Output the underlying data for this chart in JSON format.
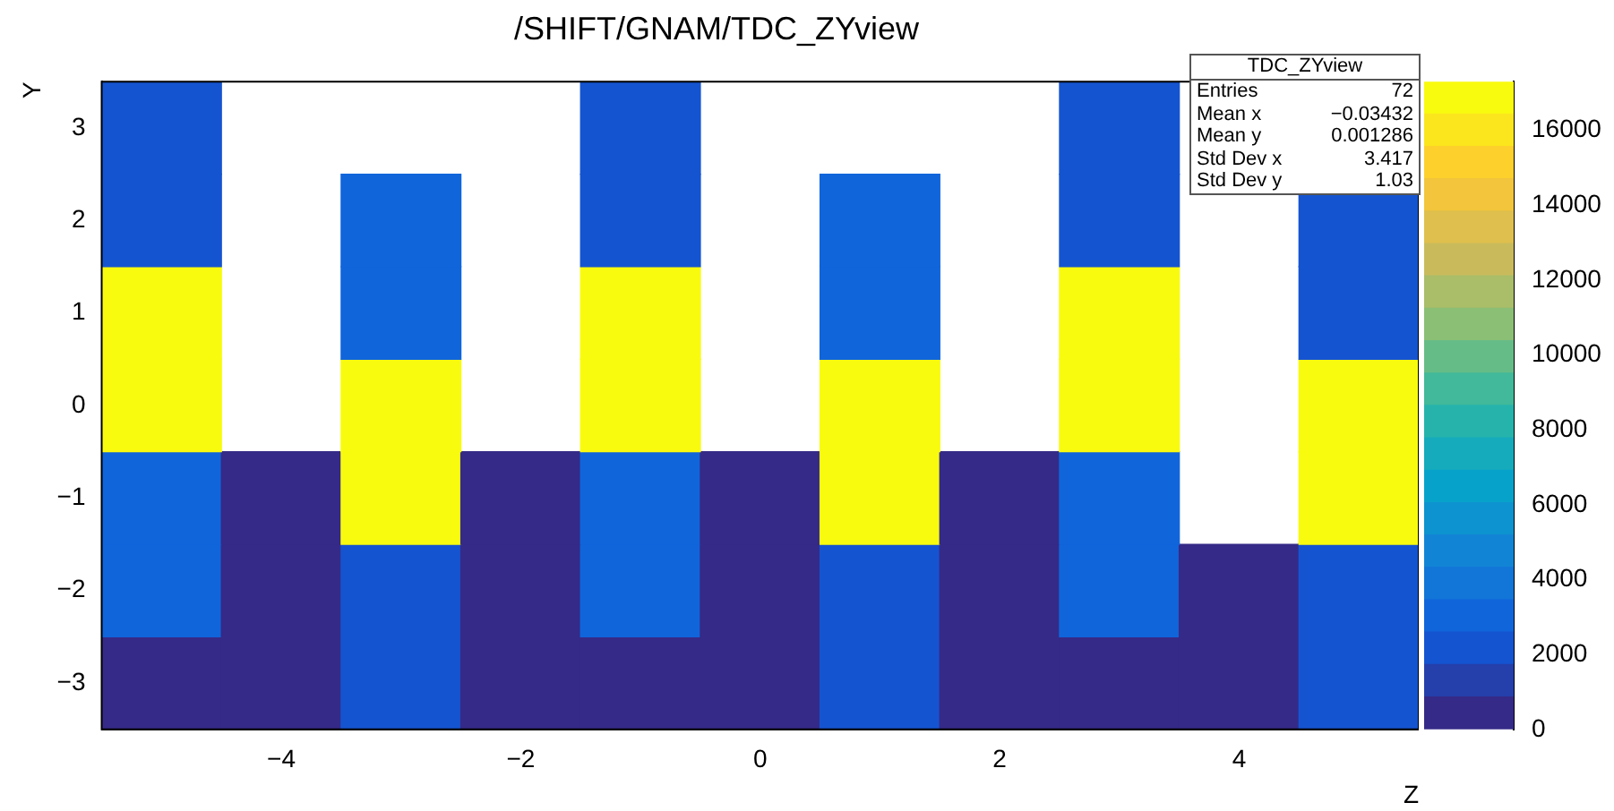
{
  "chart_data": {
    "type": "heatmap",
    "title": "/SHIFT/GNAM/TDC_ZYview",
    "xlabel": "Z",
    "ylabel": "Y",
    "x": [
      -5,
      -4,
      -3,
      -2,
      -1,
      0,
      1,
      2,
      3,
      4,
      5
    ],
    "xlim": [
      -5.5,
      5.5
    ],
    "xticks": [
      -4,
      -2,
      0,
      2,
      4
    ],
    "ylim": [
      -3.5,
      3.5
    ],
    "yticks": [
      -3,
      -2,
      -1,
      0,
      1,
      2,
      3
    ],
    "cells": [
      [
        2000,
        null,
        null,
        null,
        2000,
        null,
        null,
        null,
        2000,
        null,
        null
      ],
      [
        2000,
        null,
        3000,
        null,
        2000,
        null,
        3000,
        null,
        2000,
        null,
        2000
      ],
      [
        17000,
        null,
        3000,
        null,
        17000,
        null,
        3000,
        null,
        17000,
        null,
        2000
      ],
      [
        17000,
        null,
        17000,
        null,
        17000,
        null,
        17000,
        null,
        17000,
        null,
        17000
      ],
      [
        3000,
        500,
        17000,
        500,
        3000,
        500,
        17000,
        500,
        3000,
        null,
        17000
      ],
      [
        3000,
        500,
        2000,
        500,
        3000,
        500,
        2000,
        500,
        3000,
        500,
        2000
      ],
      [
        500,
        500,
        2000,
        500,
        500,
        500,
        2000,
        500,
        500,
        500,
        2000
      ]
    ],
    "clim": [
      0,
      17300
    ],
    "cticks": [
      0,
      2000,
      4000,
      6000,
      8000,
      10000,
      12000,
      14000,
      16000
    ],
    "annotations": [
      "TDC_ZYview",
      "Entries",
      "72",
      "Mean x",
      "−0.03432",
      "Mean y",
      "0.001286",
      "Std Dev x",
      "3.417",
      "Std Dev y",
      "1.03"
    ]
  }
}
